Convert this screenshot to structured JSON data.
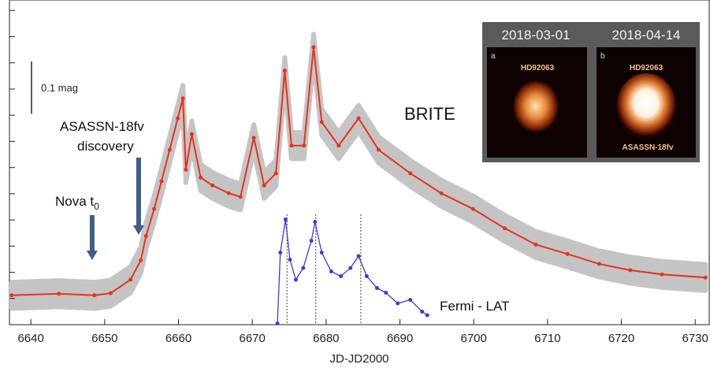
{
  "chart_data": {
    "type": "line",
    "x_label": "JD-JD2000",
    "xlim": [
      6637.1,
      6731.9
    ],
    "xticks": [
      6640,
      6650,
      6660,
      6670,
      6680,
      6690,
      6700,
      6710,
      6720,
      6730
    ],
    "ylim": [
      0,
      0.62
    ],
    "yticks": [
      0.05,
      0.1,
      0.15,
      0.2,
      0.25,
      0.3,
      0.35,
      0.4,
      0.45,
      0.5,
      0.55,
      0.6
    ],
    "y2lim": [
      0,
      1
    ],
    "scale_bar": {
      "value": 0.1,
      "label": "0.1 mag"
    },
    "series": [
      {
        "name": "BRITE",
        "color": "#e8321e",
        "band_color": "#c4c4c4",
        "scatter": 0.025,
        "x": [
          6637.4,
          6643.8,
          6648.6,
          6650.8,
          6653.5,
          6654.9,
          6655.6,
          6656.7,
          6657.7,
          6658.8,
          6659.9,
          6660.6,
          6661.0,
          6661.8,
          6663.0,
          6664.6,
          6666.8,
          6668.4,
          6670.2,
          6671.6,
          6673.2,
          6674.4,
          6675.3,
          6677.0,
          6678.3,
          6679.4,
          6681.7,
          6684.4,
          6687.1,
          6691.4,
          6695.6,
          6699.9,
          6704.2,
          6708.4,
          6712.7,
          6717.0,
          6721.2,
          6725.5,
          6731.4
        ],
        "values": [
          0.056,
          0.059,
          0.056,
          0.06,
          0.086,
          0.123,
          0.169,
          0.221,
          0.274,
          0.334,
          0.394,
          0.432,
          0.296,
          0.364,
          0.281,
          0.266,
          0.251,
          0.244,
          0.357,
          0.266,
          0.289,
          0.485,
          0.342,
          0.342,
          0.53,
          0.387,
          0.342,
          0.394,
          0.334,
          0.289,
          0.251,
          0.221,
          0.184,
          0.153,
          0.135,
          0.116,
          0.104,
          0.096,
          0.09
        ]
      },
      {
        "name": "Fermi - LAT",
        "color": "#3a3ae6",
        "axis": "y2",
        "x": [
          6673.4,
          6673.8,
          6674.5,
          6675.1,
          6675.9,
          6676.9,
          6678.0,
          6678.5,
          6679.4,
          6680.7,
          6682.0,
          6683.3,
          6684.4,
          6685.5,
          6686.9,
          6688.1,
          6689.7,
          6691.4,
          6693.0,
          6693.7
        ],
        "values": [
          0.01,
          0.61,
          0.89,
          0.55,
          0.38,
          0.48,
          0.71,
          0.87,
          0.61,
          0.45,
          0.41,
          0.48,
          0.58,
          0.41,
          0.31,
          0.27,
          0.18,
          0.21,
          0.11,
          0.08
        ]
      }
    ],
    "event_lines": [
      6674.7,
      6678.6,
      6684.7
    ],
    "annotations": [
      {
        "text": [
          "ASASSN-18fv",
          "discovery"
        ],
        "x": 6654.6
      },
      {
        "text": "Nova t",
        "subscript": "0",
        "x": 6648.3
      }
    ]
  },
  "inset": {
    "panels": [
      {
        "date": "2018-03-01",
        "letter": "a",
        "labels": [
          "HD92063"
        ]
      },
      {
        "date": "2018-04-14",
        "letter": "b",
        "labels": [
          "HD92063",
          "ASASSN-18fv"
        ]
      }
    ]
  }
}
